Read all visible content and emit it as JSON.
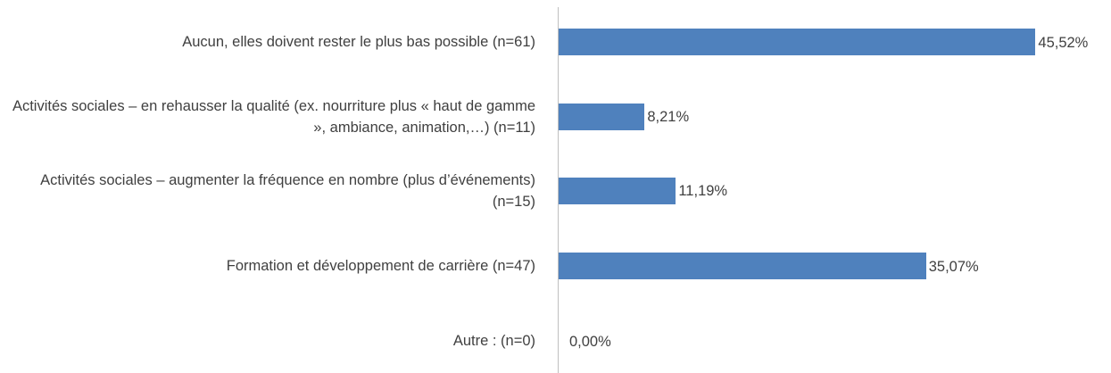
{
  "chart_data": {
    "type": "bar",
    "orientation": "horizontal",
    "categories": [
      "Aucun, elles doivent rester le plus bas possible (n=61)",
      "Activités sociales – en rehausser la qualité (ex. nourriture plus « haut de gamme », ambiance, animation,…) (n=11)",
      "Activités sociales – augmenter la fréquence en nombre (plus d’événements) (n=15)",
      "Formation et développement de carrière (n=47)",
      "Autre : (n=0)"
    ],
    "values": [
      45.52,
      8.21,
      11.19,
      35.07,
      0
    ],
    "value_labels": [
      "45,52%",
      "8,21%",
      "11,19%",
      "35,07%",
      "0,00%"
    ],
    "color": "#4f81bd",
    "xlim": [
      0,
      50
    ]
  }
}
